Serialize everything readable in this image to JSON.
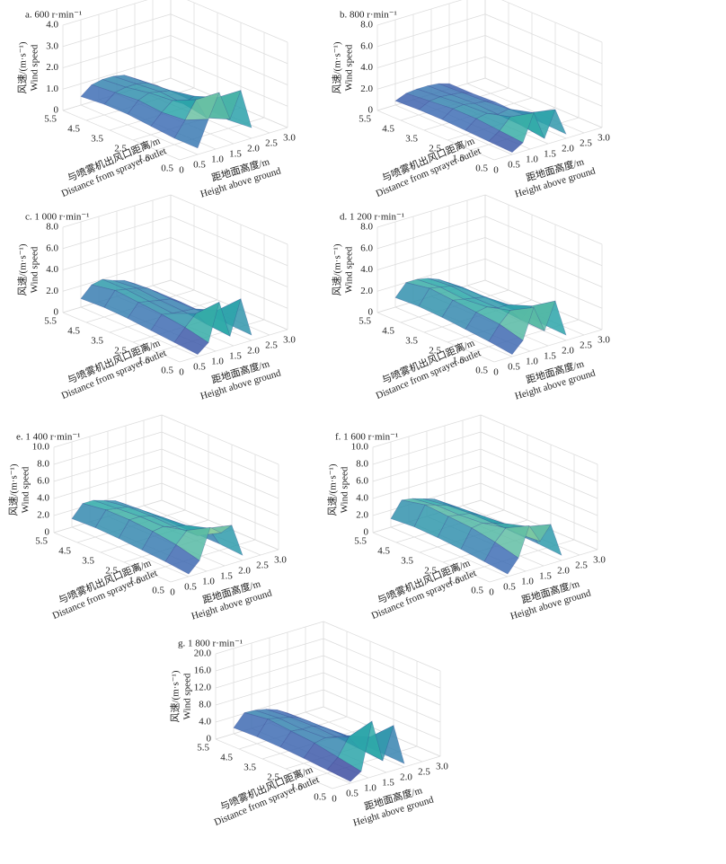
{
  "chart_data": [
    {
      "type": "surface3d",
      "title": "a. 600 r·min⁻¹",
      "zlabel": [
        "风速/(m·s⁻¹)",
        "Wind speed"
      ],
      "xlabel": [
        "与喷雾机出风口距离/m",
        "Distance from sprayer outlet"
      ],
      "ylabel": [
        "距地面高度/m",
        "Height above ground"
      ],
      "xlim": [
        0.5,
        5.5
      ],
      "xticks": [
        0.5,
        1.5,
        2.5,
        3.5,
        4.5,
        5.5
      ],
      "ylim": [
        0,
        3
      ],
      "yticks": [
        0,
        0.5,
        {
          "value": 1,
          "label": "1.0"
        },
        1.5,
        {
          "value": 2,
          "label": "2.0"
        },
        2.5,
        {
          "value": 3,
          "label": "3.0"
        }
      ],
      "zlim": [
        0,
        4
      ],
      "zticks": [
        0,
        {
          "value": 1,
          "label": "1.0"
        },
        {
          "value": 2,
          "label": "2.0"
        },
        {
          "value": 3,
          "label": "3.0"
        },
        {
          "value": 4,
          "label": "4.0"
        }
      ],
      "x": [
        0.5,
        1.5,
        2.5,
        3.5,
        4.5,
        5.5
      ],
      "y": [
        0.5,
        0.8,
        1.1,
        1.4,
        1.7,
        2.0
      ],
      "values": [
        [
          0.3,
          1.5,
          2.6,
          1.2,
          2.4,
          0.5
        ],
        [
          0.3,
          1.0,
          1.8,
          0.8,
          1.6,
          0.4
        ],
        [
          0.4,
          0.9,
          1.3,
          1.0,
          1.2,
          0.5
        ],
        [
          0.5,
          1.0,
          1.2,
          1.1,
          1.0,
          0.6
        ],
        [
          0.5,
          0.9,
          1.0,
          1.0,
          0.9,
          0.6
        ],
        [
          0.4,
          0.8,
          0.9,
          0.9,
          0.8,
          0.5
        ]
      ]
    },
    {
      "type": "surface3d",
      "title": "b. 800 r·min⁻¹",
      "zlabel": [
        "风速/(m·s⁻¹)",
        "Wind speed"
      ],
      "xlabel": [
        "与喷雾机出风口距离/m",
        "Distance from sprayer outlet"
      ],
      "ylabel": [
        "距地面高度/m",
        "Height above ground"
      ],
      "xlim": [
        0.5,
        5.5
      ],
      "xticks": [
        0.5,
        1.5,
        2.5,
        3.5,
        4.5,
        5.5
      ],
      "ylim": [
        0,
        3
      ],
      "yticks": [
        0,
        0.5,
        {
          "value": 1,
          "label": "1.0"
        },
        1.5,
        {
          "value": 2,
          "label": "2.0"
        },
        2.5,
        {
          "value": 3,
          "label": "3.0"
        }
      ],
      "zlim": [
        0,
        8
      ],
      "zticks": [
        0,
        {
          "value": 2,
          "label": "2.0"
        },
        {
          "value": 4,
          "label": "4.0"
        },
        {
          "value": 6,
          "label": "6.0"
        },
        {
          "value": 8,
          "label": "8.0"
        }
      ],
      "x": [
        0.5,
        1.5,
        2.5,
        3.5,
        4.5,
        5.5
      ],
      "y": [
        0.5,
        0.8,
        1.1,
        1.4,
        1.7,
        2.0
      ],
      "values": [
        [
          0.2,
          0.8,
          3.3,
          0.6,
          3.0,
          0.4
        ],
        [
          0.3,
          1.0,
          2.0,
          0.9,
          1.8,
          0.5
        ],
        [
          0.4,
          1.2,
          1.4,
          1.0,
          1.2,
          0.5
        ],
        [
          0.5,
          1.2,
          1.3,
          1.1,
          1.0,
          0.6
        ],
        [
          0.5,
          1.0,
          1.1,
          1.0,
          0.9,
          0.5
        ],
        [
          0.4,
          0.8,
          0.9,
          0.9,
          0.8,
          0.5
        ]
      ]
    },
    {
      "type": "surface3d",
      "title": "c. 1 000 r·min⁻¹",
      "zlabel": [
        "风速/(m·s⁻¹)",
        "Wind speed"
      ],
      "xlabel": [
        "与喷雾机出风口距离/m",
        "Distance from sprayer outlet"
      ],
      "ylabel": [
        "距地面高度/m",
        "Height above ground"
      ],
      "xlim": [
        0.5,
        5.5
      ],
      "xticks": [
        0.5,
        1.5,
        2.5,
        3.5,
        4.5,
        5.5
      ],
      "ylim": [
        0,
        3
      ],
      "yticks": [
        0,
        0.5,
        {
          "value": 1,
          "label": "1.0"
        },
        1.5,
        {
          "value": 2,
          "label": "2.0"
        },
        2.5,
        {
          "value": 3,
          "label": "3.0"
        }
      ],
      "zlim": [
        0,
        8
      ],
      "zticks": [
        0,
        {
          "value": 2,
          "label": "2.0"
        },
        {
          "value": 4,
          "label": "4.0"
        },
        {
          "value": 6,
          "label": "6.0"
        },
        {
          "value": 8,
          "label": "8.0"
        }
      ],
      "x": [
        0.5,
        1.5,
        2.5,
        3.5,
        4.5,
        5.5
      ],
      "y": [
        0.5,
        0.8,
        1.1,
        1.4,
        1.7,
        2.0
      ],
      "values": [
        [
          0.2,
          1.0,
          4.5,
          1.0,
          4.2,
          0.5
        ],
        [
          0.4,
          1.5,
          2.5,
          1.2,
          2.2,
          0.6
        ],
        [
          0.6,
          1.8,
          1.6,
          1.5,
          1.4,
          0.7
        ],
        [
          0.8,
          2.0,
          1.8,
          1.6,
          1.4,
          0.8
        ],
        [
          0.9,
          2.2,
          2.0,
          1.8,
          1.5,
          0.8
        ],
        [
          0.8,
          1.8,
          2.0,
          1.6,
          1.3,
          0.7
        ]
      ]
    },
    {
      "type": "surface3d",
      "title": "d. 1 200 r·min⁻¹",
      "zlabel": [
        "风速/(m·s⁻¹)",
        "Wind speed"
      ],
      "xlabel": [
        "与喷雾机出风口距离/m",
        "Distance from sprayer outlet"
      ],
      "ylabel": [
        "距地面高度/m",
        "Height above ground"
      ],
      "xlim": [
        0.5,
        5.5
      ],
      "xticks": [
        0.5,
        1.5,
        2.5,
        3.5,
        4.5,
        5.5
      ],
      "ylim": [
        0,
        3
      ],
      "yticks": [
        0,
        0.5,
        {
          "value": 1,
          "label": "1.0"
        },
        1.5,
        {
          "value": 2,
          "label": "2.0"
        },
        2.5,
        {
          "value": 3,
          "label": "3.0"
        }
      ],
      "zlim": [
        0,
        8
      ],
      "zticks": [
        0,
        {
          "value": 2,
          "label": "2.0"
        },
        {
          "value": 4,
          "label": "4.0"
        },
        {
          "value": 6,
          "label": "6.0"
        },
        {
          "value": 8,
          "label": "8.0"
        }
      ],
      "x": [
        0.5,
        1.5,
        2.5,
        3.5,
        4.5,
        5.5
      ],
      "y": [
        0.5,
        0.8,
        1.1,
        1.4,
        1.7,
        2.0
      ],
      "values": [
        [
          0.2,
          1.2,
          4.0,
          1.5,
          4.0,
          0.5
        ],
        [
          0.5,
          1.8,
          2.8,
          1.6,
          2.6,
          0.6
        ],
        [
          0.7,
          2.0,
          2.2,
          1.8,
          1.8,
          0.7
        ],
        [
          0.9,
          2.2,
          2.0,
          1.8,
          1.6,
          0.8
        ],
        [
          1.0,
          2.4,
          2.2,
          2.0,
          1.6,
          0.8
        ],
        [
          0.9,
          2.0,
          2.0,
          1.8,
          1.4,
          0.7
        ]
      ]
    },
    {
      "type": "surface3d",
      "title": "e. 1 400 r·min⁻¹",
      "zlabel": [
        "风速/(m·s⁻¹)",
        "Wind speed"
      ],
      "xlabel": [
        "与喷雾机出风口距离/m",
        "Distance from sprayer outlet"
      ],
      "ylabel": [
        "距地面高度/m",
        "Height above ground"
      ],
      "xlim": [
        0.5,
        5.5
      ],
      "xticks": [
        0.5,
        1.5,
        2.5,
        3.5,
        4.5,
        5.5
      ],
      "ylim": [
        0,
        3
      ],
      "yticks": [
        0,
        0.5,
        {
          "value": 1,
          "label": "1.0"
        },
        1.5,
        {
          "value": 2,
          "label": "2.0"
        },
        2.5,
        {
          "value": 3,
          "label": "3.0"
        }
      ],
      "zlim": [
        0,
        10
      ],
      "zticks": [
        0,
        {
          "value": 2,
          "label": "2.0"
        },
        {
          "value": 4,
          "label": "4.0"
        },
        {
          "value": 6,
          "label": "6.0"
        },
        {
          "value": 8,
          "label": "8.0"
        },
        {
          "value": 10,
          "label": "10.0"
        }
      ],
      "x": [
        0.5,
        1.5,
        2.5,
        3.5,
        4.5,
        5.5
      ],
      "y": [
        0.5,
        0.8,
        1.1,
        1.4,
        1.7,
        2.0
      ],
      "values": [
        [
          0.3,
          1.5,
          5.0,
          4.0,
          4.5,
          0.6
        ],
        [
          0.6,
          2.2,
          3.5,
          2.5,
          3.0,
          0.8
        ],
        [
          0.8,
          2.6,
          2.8,
          2.4,
          2.2,
          0.8
        ],
        [
          1.0,
          2.8,
          2.8,
          2.5,
          2.0,
          0.9
        ],
        [
          1.1,
          2.8,
          2.6,
          2.4,
          1.8,
          0.9
        ],
        [
          1.0,
          2.4,
          2.4,
          2.0,
          1.6,
          0.8
        ]
      ]
    },
    {
      "type": "surface3d",
      "title": "f. 1 600 r·min⁻¹",
      "zlabel": [
        "风速/(m·s⁻¹)",
        "Wind speed"
      ],
      "xlabel": [
        "与喷雾机出风口距离/m",
        "Distance from sprayer outlet"
      ],
      "ylabel": [
        "距地面高度/m",
        "Height above ground"
      ],
      "xlim": [
        0.5,
        5.5
      ],
      "xticks": [
        0.5,
        1.5,
        2.5,
        3.5,
        4.5,
        5.5
      ],
      "ylim": [
        0,
        3
      ],
      "yticks": [
        0,
        0.5,
        {
          "value": 1,
          "label": "1.0"
        },
        1.5,
        {
          "value": 2,
          "label": "2.0"
        },
        2.5,
        {
          "value": 3,
          "label": "3.0"
        }
      ],
      "zlim": [
        0,
        10
      ],
      "zticks": [
        0,
        {
          "value": 2,
          "label": "2.0"
        },
        {
          "value": 4,
          "label": "4.0"
        },
        {
          "value": 6,
          "label": "6.0"
        },
        {
          "value": 8,
          "label": "8.0"
        },
        {
          "value": 10,
          "label": "10.0"
        }
      ],
      "x": [
        0.5,
        1.5,
        2.5,
        3.5,
        4.5,
        5.5
      ],
      "y": [
        0.5,
        0.8,
        1.1,
        1.4,
        1.7,
        2.0
      ],
      "values": [
        [
          0.3,
          1.8,
          5.2,
          3.0,
          4.6,
          0.6
        ],
        [
          0.6,
          2.5,
          3.8,
          2.8,
          3.2,
          0.8
        ],
        [
          0.9,
          3.0,
          3.2,
          2.8,
          2.4,
          0.9
        ],
        [
          1.1,
          3.2,
          3.0,
          2.8,
          2.2,
          1.0
        ],
        [
          1.2,
          3.4,
          3.0,
          2.6,
          2.0,
          1.0
        ],
        [
          1.0,
          2.8,
          2.6,
          2.2,
          1.8,
          0.8
        ]
      ]
    },
    {
      "type": "surface3d",
      "title": "g. 1 800 r·min⁻¹",
      "zlabel": [
        "风速/(m·s⁻¹)",
        "Wind speed"
      ],
      "xlabel": [
        "与喷雾机出风口距离/m",
        "Distance from sprayer outlet"
      ],
      "ylabel": [
        "距地面高度/m",
        "Height above ground"
      ],
      "xlim": [
        0.5,
        5.5
      ],
      "xticks": [
        0.5,
        1.5,
        2.5,
        3.5,
        4.5,
        5.5
      ],
      "ylim": [
        0,
        3
      ],
      "yticks": [
        0,
        0.5,
        {
          "value": 1,
          "label": "1.0"
        },
        1.5,
        {
          "value": 2,
          "label": "2.0"
        },
        2.5,
        {
          "value": 3,
          "label": "3.0"
        }
      ],
      "zlim": [
        0,
        20
      ],
      "zticks": [
        0,
        {
          "value": 4,
          "label": "4.0"
        },
        {
          "value": 8,
          "label": "8.0"
        },
        {
          "value": 12,
          "label": "12.0"
        },
        {
          "value": 16,
          "label": "16.0"
        },
        {
          "value": 20,
          "label": "20.0"
        }
      ],
      "x": [
        0.5,
        1.5,
        2.5,
        3.5,
        4.5,
        5.5
      ],
      "y": [
        0.5,
        0.8,
        1.1,
        1.4,
        1.7,
        2.0
      ],
      "values": [
        [
          0.4,
          2.0,
          13.0,
          3.0,
          10.5,
          0.8
        ],
        [
          0.8,
          3.0,
          7.0,
          3.5,
          5.5,
          1.0
        ],
        [
          1.2,
          4.0,
          4.5,
          4.0,
          3.5,
          1.2
        ],
        [
          1.5,
          4.5,
          4.2,
          4.2,
          3.2,
          1.3
        ],
        [
          1.6,
          5.0,
          4.5,
          4.0,
          3.0,
          1.3
        ],
        [
          1.4,
          4.2,
          4.0,
          3.5,
          2.6,
          1.1
        ]
      ]
    }
  ]
}
